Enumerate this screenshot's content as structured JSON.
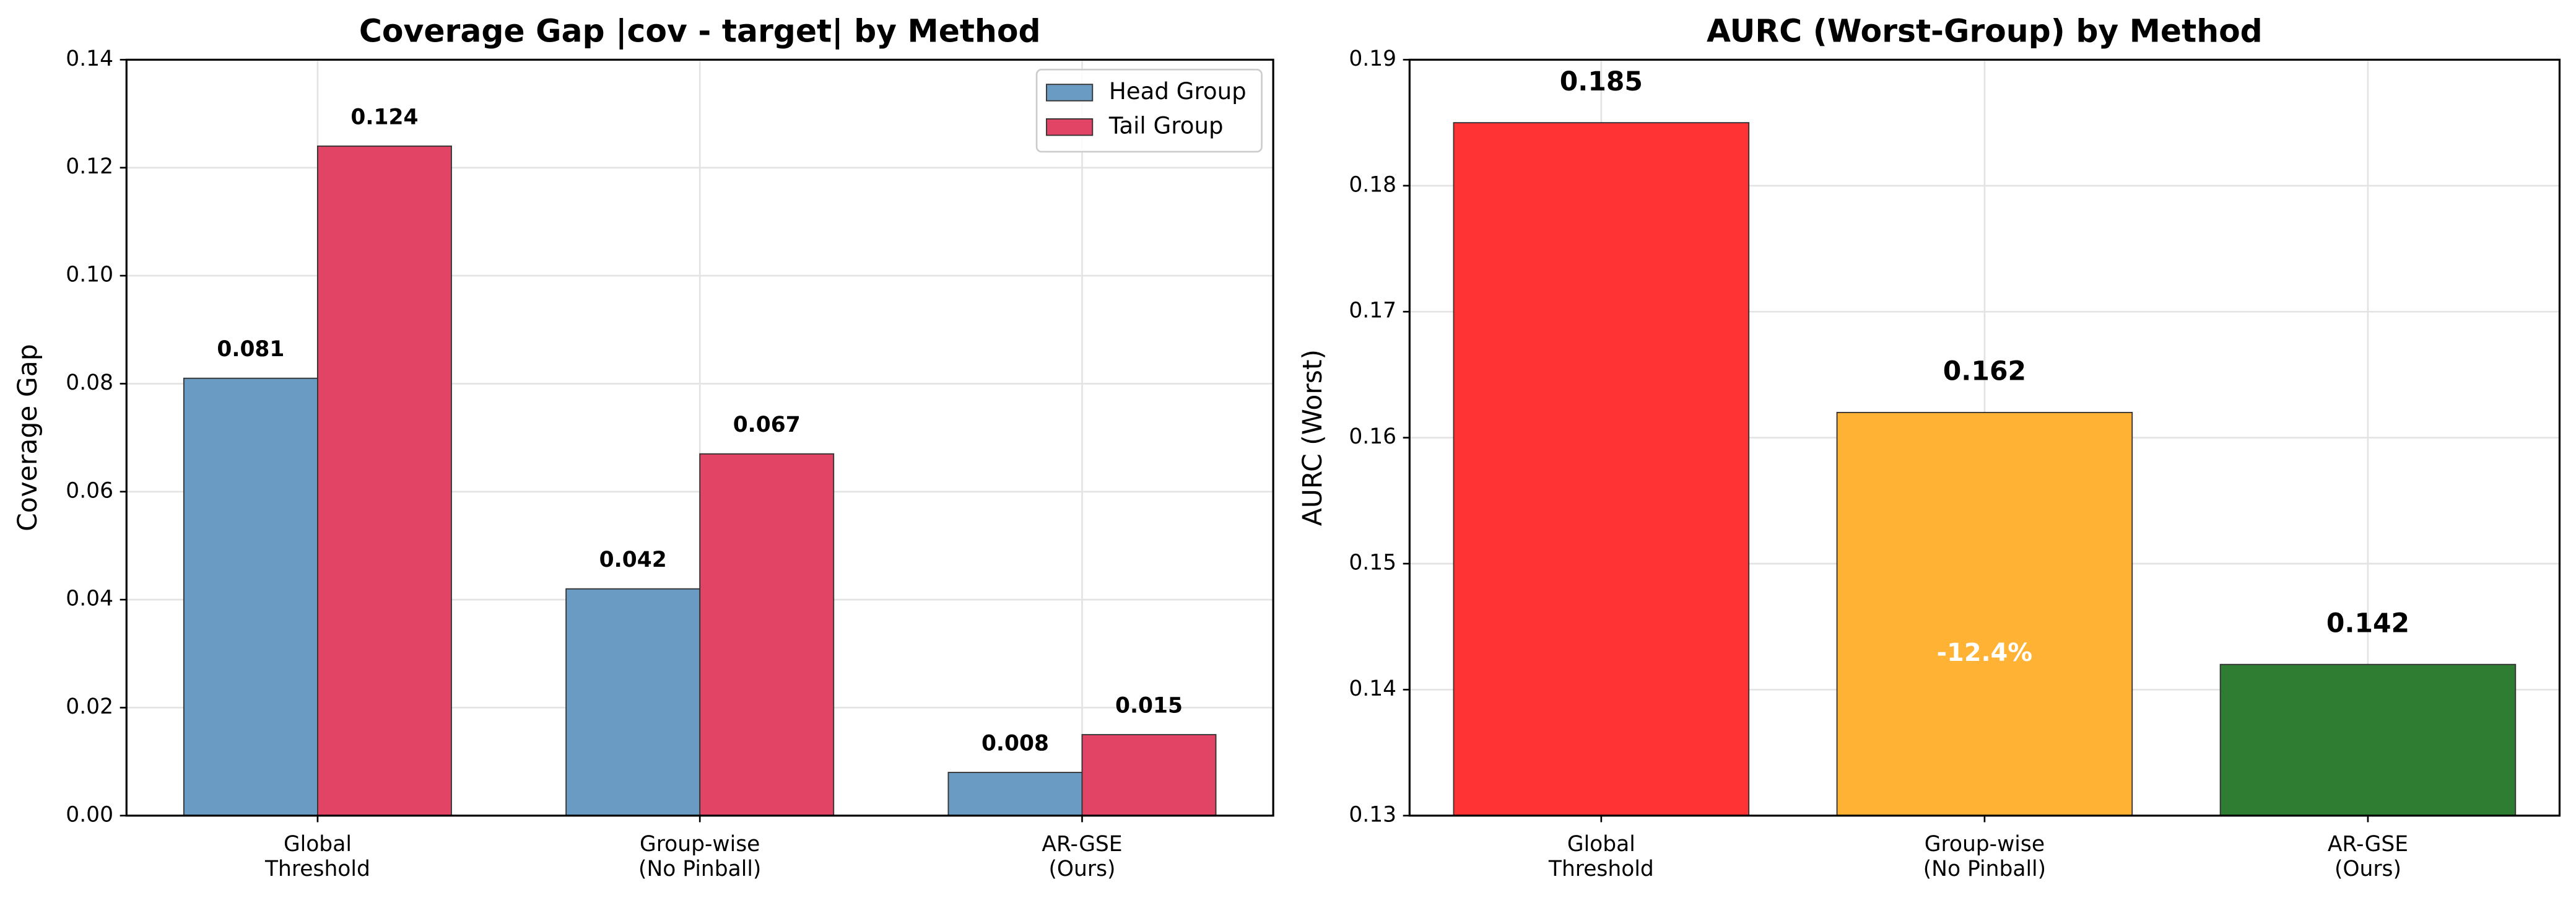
{
  "chart_data": [
    {
      "type": "bar",
      "title": "Coverage Gap |cov - target| by Method",
      "ylabel": "Coverage Gap",
      "categories": [
        [
          "Global",
          "Threshold"
        ],
        [
          "Group-wise",
          "(No Pinball)"
        ],
        [
          "AR-GSE",
          "(Ours)"
        ]
      ],
      "series": [
        {
          "name": "Head Group",
          "color": "#6a9bc3",
          "values": [
            0.081,
            0.042,
            0.008
          ]
        },
        {
          "name": "Tail Group",
          "color": "#e24466",
          "values": [
            0.124,
            0.067,
            0.015
          ]
        }
      ],
      "ylim": [
        0,
        0.14
      ],
      "yticks": [
        {
          "value": 0,
          "label": "0.00"
        },
        0.02,
        0.04,
        0.06,
        0.08,
        {
          "value": 0.1,
          "label": "0.10"
        },
        0.12,
        0.14
      ],
      "grid": true,
      "legend": "upper right"
    },
    {
      "type": "bar",
      "title": "AURC (Worst-Group) by Method",
      "ylabel": "AURC (Worst)",
      "categories": [
        [
          "Global",
          "Threshold"
        ],
        [
          "Group-wise",
          "(No Pinball)"
        ],
        [
          "AR-GSE",
          "(Ours)"
        ]
      ],
      "values": [
        0.185,
        0.162,
        0.142
      ],
      "colors": [
        "#ff3333",
        "#ffb233",
        "#2e7d32"
      ],
      "ylim": [
        0.13,
        0.19
      ],
      "yticks": [
        0.13,
        0.14,
        0.15,
        0.16,
        0.17,
        0.18,
        0.19
      ],
      "grid": true,
      "annotation": "-12.4%"
    }
  ]
}
